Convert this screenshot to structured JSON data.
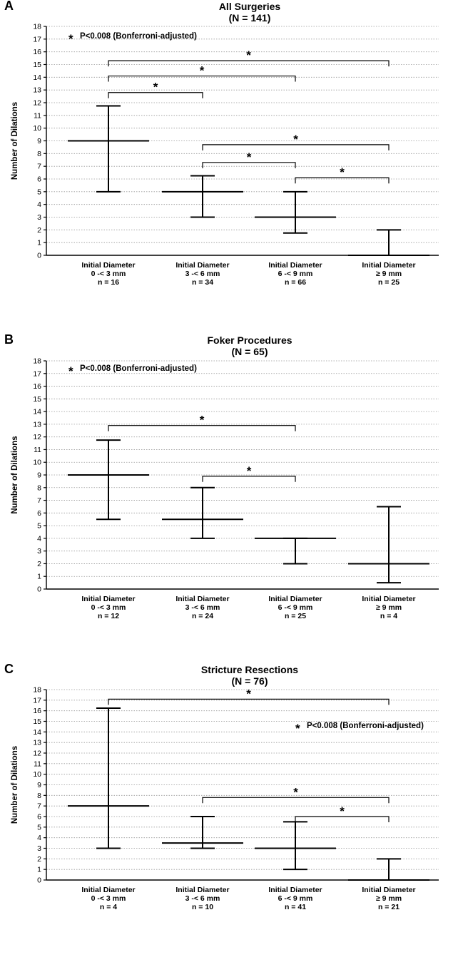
{
  "chart_data": [
    {
      "type": "error_bar",
      "panel_label": "A",
      "title": "All Surgeries",
      "subtitle": "(N = 141)",
      "ylabel": "Number of Dilations",
      "ylim": [
        0,
        18
      ],
      "yticks": [
        "0",
        "1",
        "2",
        "3",
        "4",
        "5",
        "6",
        "7",
        "8",
        "9",
        "10",
        "11",
        "12",
        "13",
        "14",
        "15",
        "16",
        "17",
        "18"
      ],
      "legend_text": "P<0.008 (Bonferroni-adjusted)",
      "legend_position": "top-left",
      "groups": [
        {
          "label": "Initial Diameter",
          "range": "0 -< 3 mm",
          "n": "n = 16",
          "median": 9,
          "low": 5,
          "high": 11.75
        },
        {
          "label": "Initial Diameter",
          "range": "3 -< 6 mm",
          "n": "n = 34",
          "median": 5,
          "low": 3,
          "high": 6.25
        },
        {
          "label": "Initial Diameter",
          "range": "6 -< 9 mm",
          "n": "n = 66",
          "median": 3,
          "low": 1.75,
          "high": 5
        },
        {
          "label": "Initial Diameter",
          "range": "≥ 9 mm",
          "n": "n = 25",
          "median": 0,
          "low": 0,
          "high": 2
        }
      ],
      "significance": [
        {
          "from": 0,
          "to": 1,
          "y": 12.8,
          "mark": "*"
        },
        {
          "from": 0,
          "to": 2,
          "y": 14.1,
          "mark": "*"
        },
        {
          "from": 0,
          "to": 3,
          "y": 15.3,
          "mark": "*"
        },
        {
          "from": 1,
          "to": 2,
          "y": 7.3,
          "mark": "*"
        },
        {
          "from": 1,
          "to": 3,
          "y": 8.7,
          "mark": "*"
        },
        {
          "from": 2,
          "to": 3,
          "y": 6.1,
          "mark": "*"
        }
      ]
    },
    {
      "type": "error_bar",
      "panel_label": "B",
      "title": "Foker Procedures",
      "subtitle": "(N = 65)",
      "ylabel": "Number of Dilations",
      "ylim": [
        0,
        18
      ],
      "yticks": [
        "0",
        "1",
        "2",
        "3",
        "4",
        "5",
        "6",
        "7",
        "8",
        "9",
        "10",
        "11",
        "12",
        "13",
        "14",
        "15",
        "16",
        "17",
        "18"
      ],
      "legend_text": "P<0.008 (Bonferroni-adjusted)",
      "legend_position": "top-left",
      "groups": [
        {
          "label": "Initial Diameter",
          "range": "0 -< 3 mm",
          "n": "n = 12",
          "median": 9,
          "low": 5.5,
          "high": 11.75
        },
        {
          "label": "Initial Diameter",
          "range": "3 -< 6 mm",
          "n": "n = 24",
          "median": 5.5,
          "low": 4,
          "high": 8
        },
        {
          "label": "Initial Diameter",
          "range": "6 -< 9 mm",
          "n": "n = 25",
          "median": 4,
          "low": 2,
          "high": 4
        },
        {
          "label": "Initial Diameter",
          "range": "≥ 9 mm",
          "n": "n = 4",
          "median": 2,
          "low": 0.5,
          "high": 6.5
        }
      ],
      "significance": [
        {
          "from": 0,
          "to": 2,
          "y": 12.9,
          "mark": "*"
        },
        {
          "from": 1,
          "to": 2,
          "y": 8.9,
          "mark": "*"
        }
      ]
    },
    {
      "type": "error_bar",
      "panel_label": "C",
      "title": "Stricture Resections",
      "subtitle": "(N = 76)",
      "ylabel": "Number of Dilations",
      "ylim": [
        0,
        18
      ],
      "yticks": [
        "0",
        "1",
        "2",
        "3",
        "4",
        "5",
        "6",
        "7",
        "8",
        "9",
        "10",
        "11",
        "12",
        "13",
        "14",
        "15",
        "16",
        "17",
        "18"
      ],
      "legend_text": "P<0.008 (Bonferroni-adjusted)",
      "legend_position": "upper-right",
      "groups": [
        {
          "label": "Initial Diameter",
          "range": "0 -< 3 mm",
          "n": "n = 4",
          "median": 7,
          "low": 3,
          "high": 16.25
        },
        {
          "label": "Initial Diameter",
          "range": "3 -< 6 mm",
          "n": "n = 10",
          "median": 3.5,
          "low": 3,
          "high": 6
        },
        {
          "label": "Initial Diameter",
          "range": "6 -< 9 mm",
          "n": "n = 41",
          "median": 3,
          "low": 1,
          "high": 5.5
        },
        {
          "label": "Initial Diameter",
          "range": "≥ 9 mm",
          "n": "n = 21",
          "median": 0,
          "low": 0,
          "high": 2
        }
      ],
      "significance": [
        {
          "from": 0,
          "to": 3,
          "y": 17.1,
          "mark": "*"
        },
        {
          "from": 1,
          "to": 3,
          "y": 7.8,
          "mark": "*"
        },
        {
          "from": 2,
          "to": 3,
          "y": 6.0,
          "mark": "*"
        }
      ]
    }
  ]
}
